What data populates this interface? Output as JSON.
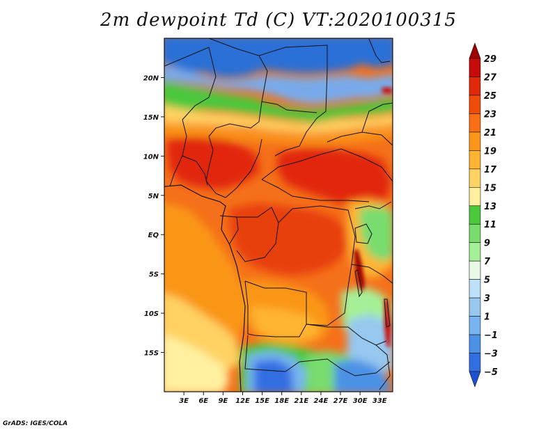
{
  "title": "2m dewpoint Td (C) VT:2020100315",
  "credit": "GrADS: IGES/COLA",
  "map": {
    "lon_range": [
      0,
      35
    ],
    "lat_range": [
      -20,
      25
    ],
    "lat_ticks": [
      {
        "value": 20,
        "label": "20N"
      },
      {
        "value": 15,
        "label": "15N"
      },
      {
        "value": 10,
        "label": "10N"
      },
      {
        "value": 5,
        "label": "5N"
      },
      {
        "value": 0,
        "label": "EQ"
      },
      {
        "value": -5,
        "label": "5S"
      },
      {
        "value": -10,
        "label": "10S"
      },
      {
        "value": -15,
        "label": "15S"
      }
    ],
    "lon_ticks": [
      {
        "value": 3,
        "label": "3E"
      },
      {
        "value": 6,
        "label": "6E"
      },
      {
        "value": 9,
        "label": "9E"
      },
      {
        "value": 12,
        "label": "12E"
      },
      {
        "value": 15,
        "label": "15E"
      },
      {
        "value": 18,
        "label": "18E"
      },
      {
        "value": 21,
        "label": "21E"
      },
      {
        "value": 24,
        "label": "24E"
      },
      {
        "value": 27,
        "label": "27E"
      },
      {
        "value": 30,
        "label": "30E"
      },
      {
        "value": 33,
        "label": "33E"
      }
    ]
  },
  "colorbar": {
    "labels": [
      "29",
      "27",
      "25",
      "23",
      "21",
      "19",
      "17",
      "15",
      "13",
      "11",
      "9",
      "7",
      "5",
      "3",
      "1",
      "−1",
      "−3",
      "−5"
    ],
    "colors": [
      "#a00000",
      "#c80a0a",
      "#e1280a",
      "#f04b0a",
      "#fa6e14",
      "#fa9619",
      "#ffb432",
      "#ffd264",
      "#fff0a0",
      "#4bc83c",
      "#78dc6e",
      "#a5f096",
      "#e6fae6",
      "#bee1fa",
      "#96c8f0",
      "#78b4f0",
      "#4b91e6",
      "#326ee1",
      "#1e50d2"
    ]
  }
}
